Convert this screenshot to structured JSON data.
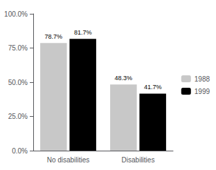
{
  "chart_data": {
    "type": "bar",
    "categories": [
      "No disabilities",
      "Disabilities"
    ],
    "series": [
      {
        "name": "1988",
        "color": "#c8c8c8",
        "values": [
          78.7,
          48.3
        ],
        "value_labels": [
          "78.7%",
          "48.3%"
        ]
      },
      {
        "name": "1999",
        "color": "#000000",
        "values": [
          81.7,
          41.7
        ],
        "value_labels": [
          "81.7%",
          "41.7%"
        ]
      }
    ],
    "ylim": [
      0,
      100
    ],
    "yticks": [
      {
        "value": 0,
        "label": "0.0%"
      },
      {
        "value": 25,
        "label": "25.0%"
      },
      {
        "value": 50,
        "label": "50.0%"
      },
      {
        "value": 75,
        "label": "75.0%"
      },
      {
        "value": 100,
        "label": "100.0%"
      }
    ],
    "grid": false,
    "legend": "right",
    "data_labels": true
  }
}
